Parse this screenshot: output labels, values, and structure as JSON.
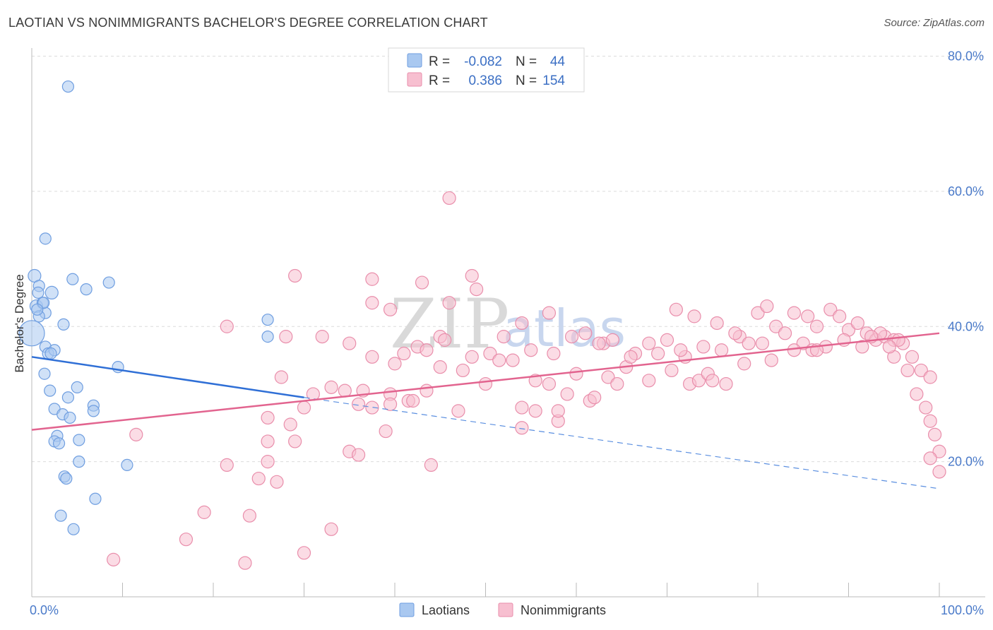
{
  "title": "LAOTIAN VS NONIMMIGRANTS BACHELOR'S DEGREE CORRELATION CHART",
  "source": "Source: ZipAtlas.com",
  "watermark": {
    "zip": "ZIP",
    "atlas": "atlas"
  },
  "legend": {
    "rows": [
      {
        "r_label": "R =",
        "r_value": "-0.082",
        "n_label": "N =",
        "n_value": "44",
        "color": "#a9c8f0",
        "stroke": "#6f9ee0"
      },
      {
        "r_label": "R =",
        "r_value": "0.386",
        "n_label": "N =",
        "n_value": "154",
        "color": "#f7bfd0",
        "stroke": "#e98eab"
      }
    ]
  },
  "bottom_legend": [
    {
      "label": "Laotians",
      "color": "#a9c8f0",
      "stroke": "#6f9ee0"
    },
    {
      "label": "Nonimmigrants",
      "color": "#f7bfd0",
      "stroke": "#e98eab"
    }
  ],
  "chart_data": {
    "type": "scatter",
    "title": "LAOTIAN VS NONIMMIGRANTS BACHELOR'S DEGREE CORRELATION CHART",
    "xlabel": "",
    "ylabel": "Bachelor's Degree",
    "xlim": [
      0,
      100
    ],
    "ylim": [
      0,
      80
    ],
    "x_tick_labels": [
      "0.0%",
      "100.0%"
    ],
    "y_ticks": [
      20,
      40,
      60,
      80
    ],
    "y_tick_labels": [
      "20.0%",
      "40.0%",
      "60.0%",
      "80.0%"
    ],
    "grid": true,
    "series": [
      {
        "name": "Laotians",
        "color": "#a9c8f0",
        "stroke": "#6f9ee0",
        "trend": {
          "x0": 0,
          "y0": 35.5,
          "x1": 30,
          "y1": 29.5,
          "dash_to_x": 100,
          "dash_to_y": 16
        },
        "points": [
          [
            0,
            39,
            18
          ],
          [
            4,
            75.5,
            8
          ],
          [
            1.5,
            53,
            8
          ],
          [
            0.3,
            47.5,
            9
          ],
          [
            0.8,
            46,
            8
          ],
          [
            2.2,
            45,
            9
          ],
          [
            0.7,
            45,
            8
          ],
          [
            4.5,
            47,
            8
          ],
          [
            6,
            45.5,
            8
          ],
          [
            8.5,
            46.5,
            8
          ],
          [
            0.5,
            43,
            9
          ],
          [
            1.2,
            43.5,
            8
          ],
          [
            1.5,
            42,
            8
          ],
          [
            0.8,
            41.5,
            8
          ],
          [
            3.5,
            40.3,
            8
          ],
          [
            26,
            38.5,
            8
          ],
          [
            26,
            41,
            8
          ],
          [
            1.5,
            37,
            8
          ],
          [
            1.8,
            36,
            8
          ],
          [
            2.5,
            36.5,
            8
          ],
          [
            1.4,
            33,
            8
          ],
          [
            9.5,
            34,
            8
          ],
          [
            5,
            31,
            8
          ],
          [
            2,
            30.5,
            8
          ],
          [
            4,
            29.5,
            8
          ],
          [
            6.8,
            28.3,
            8
          ],
          [
            2.5,
            27.8,
            8
          ],
          [
            6.8,
            27.5,
            8
          ],
          [
            3.4,
            27,
            8
          ],
          [
            4.2,
            26.5,
            8
          ],
          [
            2.8,
            23.8,
            8
          ],
          [
            5.2,
            23.2,
            8
          ],
          [
            2.5,
            23,
            8
          ],
          [
            3,
            22.7,
            8
          ],
          [
            5.2,
            20,
            8
          ],
          [
            10.5,
            19.5,
            8
          ],
          [
            3.6,
            17.8,
            8
          ],
          [
            3.8,
            17.5,
            8
          ],
          [
            7,
            14.5,
            8
          ],
          [
            3.2,
            12,
            8
          ],
          [
            4.6,
            10,
            8
          ],
          [
            1.3,
            43.5,
            8
          ],
          [
            2.1,
            36,
            8
          ],
          [
            0.6,
            42.5,
            8
          ]
        ]
      },
      {
        "name": "Nonimmigrants",
        "color": "#f7bfd0",
        "stroke": "#e98eab",
        "trend": {
          "x0": 0,
          "y0": 24.7,
          "x1": 100,
          "y1": 39
        },
        "points": [
          [
            46,
            59
          ],
          [
            29,
            47.5
          ],
          [
            37.5,
            47
          ],
          [
            43,
            46.5
          ],
          [
            48.5,
            47.5
          ],
          [
            49,
            45.5
          ],
          [
            46,
            43.5
          ],
          [
            37.5,
            43.5
          ],
          [
            39.5,
            42.5
          ],
          [
            57,
            42
          ],
          [
            63,
            37.5
          ],
          [
            68,
            37.5
          ],
          [
            71,
            42.5
          ],
          [
            73,
            41.5
          ],
          [
            75.5,
            40.5
          ],
          [
            78,
            38.5
          ],
          [
            80,
            42
          ],
          [
            81,
            43
          ],
          [
            82,
            40
          ],
          [
            84,
            42
          ],
          [
            85.5,
            41.5
          ],
          [
            86.5,
            40
          ],
          [
            88,
            42.5
          ],
          [
            89,
            41.5
          ],
          [
            90,
            39.5
          ],
          [
            91,
            40.5
          ],
          [
            92,
            39
          ],
          [
            93,
            38
          ],
          [
            94,
            38.5
          ],
          [
            95,
            38
          ],
          [
            96,
            37.5
          ],
          [
            97,
            35.5
          ],
          [
            98,
            33.5
          ],
          [
            99,
            32.5
          ],
          [
            96.5,
            33.5
          ],
          [
            97.5,
            30
          ],
          [
            98.5,
            28
          ],
          [
            99,
            26
          ],
          [
            99.5,
            24
          ],
          [
            100,
            21.5
          ],
          [
            99,
            20.5
          ],
          [
            100,
            18.5
          ],
          [
            21.5,
            40
          ],
          [
            28,
            38.5
          ],
          [
            32,
            38.5
          ],
          [
            35,
            37.5
          ],
          [
            41,
            36
          ],
          [
            42.5,
            37
          ],
          [
            45,
            38.5
          ],
          [
            48.5,
            35.5
          ],
          [
            50.5,
            36
          ],
          [
            52,
            38.5
          ],
          [
            53,
            35
          ],
          [
            54,
            40.5
          ],
          [
            55,
            36.5
          ],
          [
            57.5,
            36
          ],
          [
            59.5,
            38.5
          ],
          [
            61,
            39
          ],
          [
            62.5,
            37.5
          ],
          [
            64,
            38
          ],
          [
            65.5,
            34
          ],
          [
            66.5,
            36
          ],
          [
            69,
            36
          ],
          [
            70,
            38
          ],
          [
            72,
            35.5
          ],
          [
            74,
            37
          ],
          [
            76,
            36.5
          ],
          [
            77.5,
            39
          ],
          [
            79,
            37.5
          ],
          [
            81.5,
            35
          ],
          [
            83,
            39
          ],
          [
            85,
            37.5
          ],
          [
            86,
            36.5
          ],
          [
            87.5,
            37
          ],
          [
            89.5,
            38
          ],
          [
            91.5,
            37
          ],
          [
            93.5,
            39
          ],
          [
            95.5,
            38
          ],
          [
            27.5,
            32.5
          ],
          [
            31,
            30
          ],
          [
            33,
            31
          ],
          [
            34.5,
            30.5
          ],
          [
            36.5,
            30.5
          ],
          [
            39.5,
            30
          ],
          [
            41.5,
            29
          ],
          [
            43.5,
            30.5
          ],
          [
            45,
            34
          ],
          [
            47.5,
            33.5
          ],
          [
            50,
            31.5
          ],
          [
            51.5,
            35
          ],
          [
            55.5,
            32
          ],
          [
            57,
            31.5
          ],
          [
            59,
            30
          ],
          [
            61.5,
            29
          ],
          [
            62,
            29.5
          ],
          [
            63.5,
            32.5
          ],
          [
            64.5,
            31.5
          ],
          [
            68,
            32
          ],
          [
            70.5,
            33.5
          ],
          [
            72.5,
            31.5
          ],
          [
            73.5,
            32
          ],
          [
            74.5,
            33
          ],
          [
            75,
            32
          ],
          [
            76.5,
            31.5
          ],
          [
            78.5,
            34.5
          ],
          [
            80.5,
            37.5
          ],
          [
            84,
            36.5
          ],
          [
            26,
            26.5
          ],
          [
            28.5,
            25.5
          ],
          [
            30,
            28
          ],
          [
            36,
            28.5
          ],
          [
            37.5,
            28
          ],
          [
            39.5,
            28.5
          ],
          [
            42,
            29
          ],
          [
            47,
            27.5
          ],
          [
            54,
            28
          ],
          [
            55.5,
            27.5
          ],
          [
            58,
            26
          ],
          [
            54,
            25
          ],
          [
            39,
            24.5
          ],
          [
            11.5,
            24
          ],
          [
            26,
            23
          ],
          [
            29,
            23
          ],
          [
            35,
            21.5
          ],
          [
            36,
            21
          ],
          [
            21.5,
            19.5
          ],
          [
            26,
            20
          ],
          [
            44,
            19.5
          ],
          [
            25,
            17.5
          ],
          [
            27,
            17
          ],
          [
            19,
            12.5
          ],
          [
            24,
            12
          ],
          [
            33,
            10
          ],
          [
            17,
            8.5
          ],
          [
            9,
            5.5
          ],
          [
            23.5,
            5
          ],
          [
            30,
            6.5
          ],
          [
            43.5,
            36.5
          ],
          [
            60,
            33
          ],
          [
            66,
            35.5
          ],
          [
            71.5,
            36.5
          ],
          [
            86.5,
            36.5
          ],
          [
            58,
            27.5
          ],
          [
            95,
            35.5
          ],
          [
            94.5,
            37
          ],
          [
            92.5,
            38.5
          ],
          [
            37.5,
            35.5
          ],
          [
            40,
            34.5
          ],
          [
            45.5,
            38
          ]
        ]
      }
    ]
  }
}
